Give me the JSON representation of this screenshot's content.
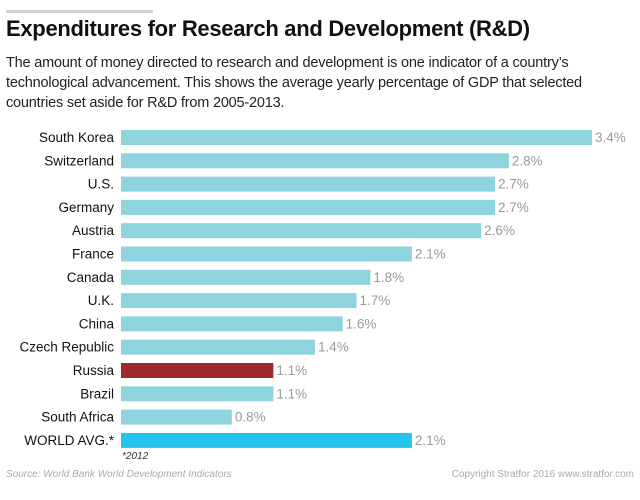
{
  "title": "Expenditures for Research and Development (R&D)",
  "subtitle": "The amount of money directed to research and development is one indicator of a country’s technological advancement. This shows the average yearly percentage of GDP that selected countries set aside for R&D from 2005-2013.",
  "chart_data": {
    "type": "bar",
    "orientation": "horizontal",
    "categories": [
      "South Korea",
      "Switzerland",
      "U.S.",
      "Germany",
      "Austria",
      "France",
      "Canada",
      "U.K.",
      "China",
      "Czech Republic",
      "Russia",
      "Brazil",
      "South Africa",
      "WORLD AVG.*"
    ],
    "values": [
      3.4,
      2.8,
      2.7,
      2.7,
      2.6,
      2.1,
      1.8,
      1.7,
      1.6,
      1.4,
      1.1,
      1.1,
      0.8,
      2.1
    ],
    "data_labels": [
      "3.4%",
      "2.8%",
      "2.7%",
      "2.7%",
      "2.6%",
      "2.1%",
      "1.8%",
      "1.7%",
      "1.6%",
      "1.4%",
      "1.1%",
      "1.1%",
      "0.8%",
      "2.1%"
    ],
    "colors": {
      "default": "#8ed4df",
      "Russia": "#9e2a2b",
      "WORLD AVG.*": "#27c3ef"
    },
    "xlim": [
      0,
      3.4
    ],
    "grid": false
  },
  "note": "*2012",
  "source": "Source: World Bank World Development Indicators",
  "copyright": "Copyright Stratfor 2016   www.stratfor.com"
}
